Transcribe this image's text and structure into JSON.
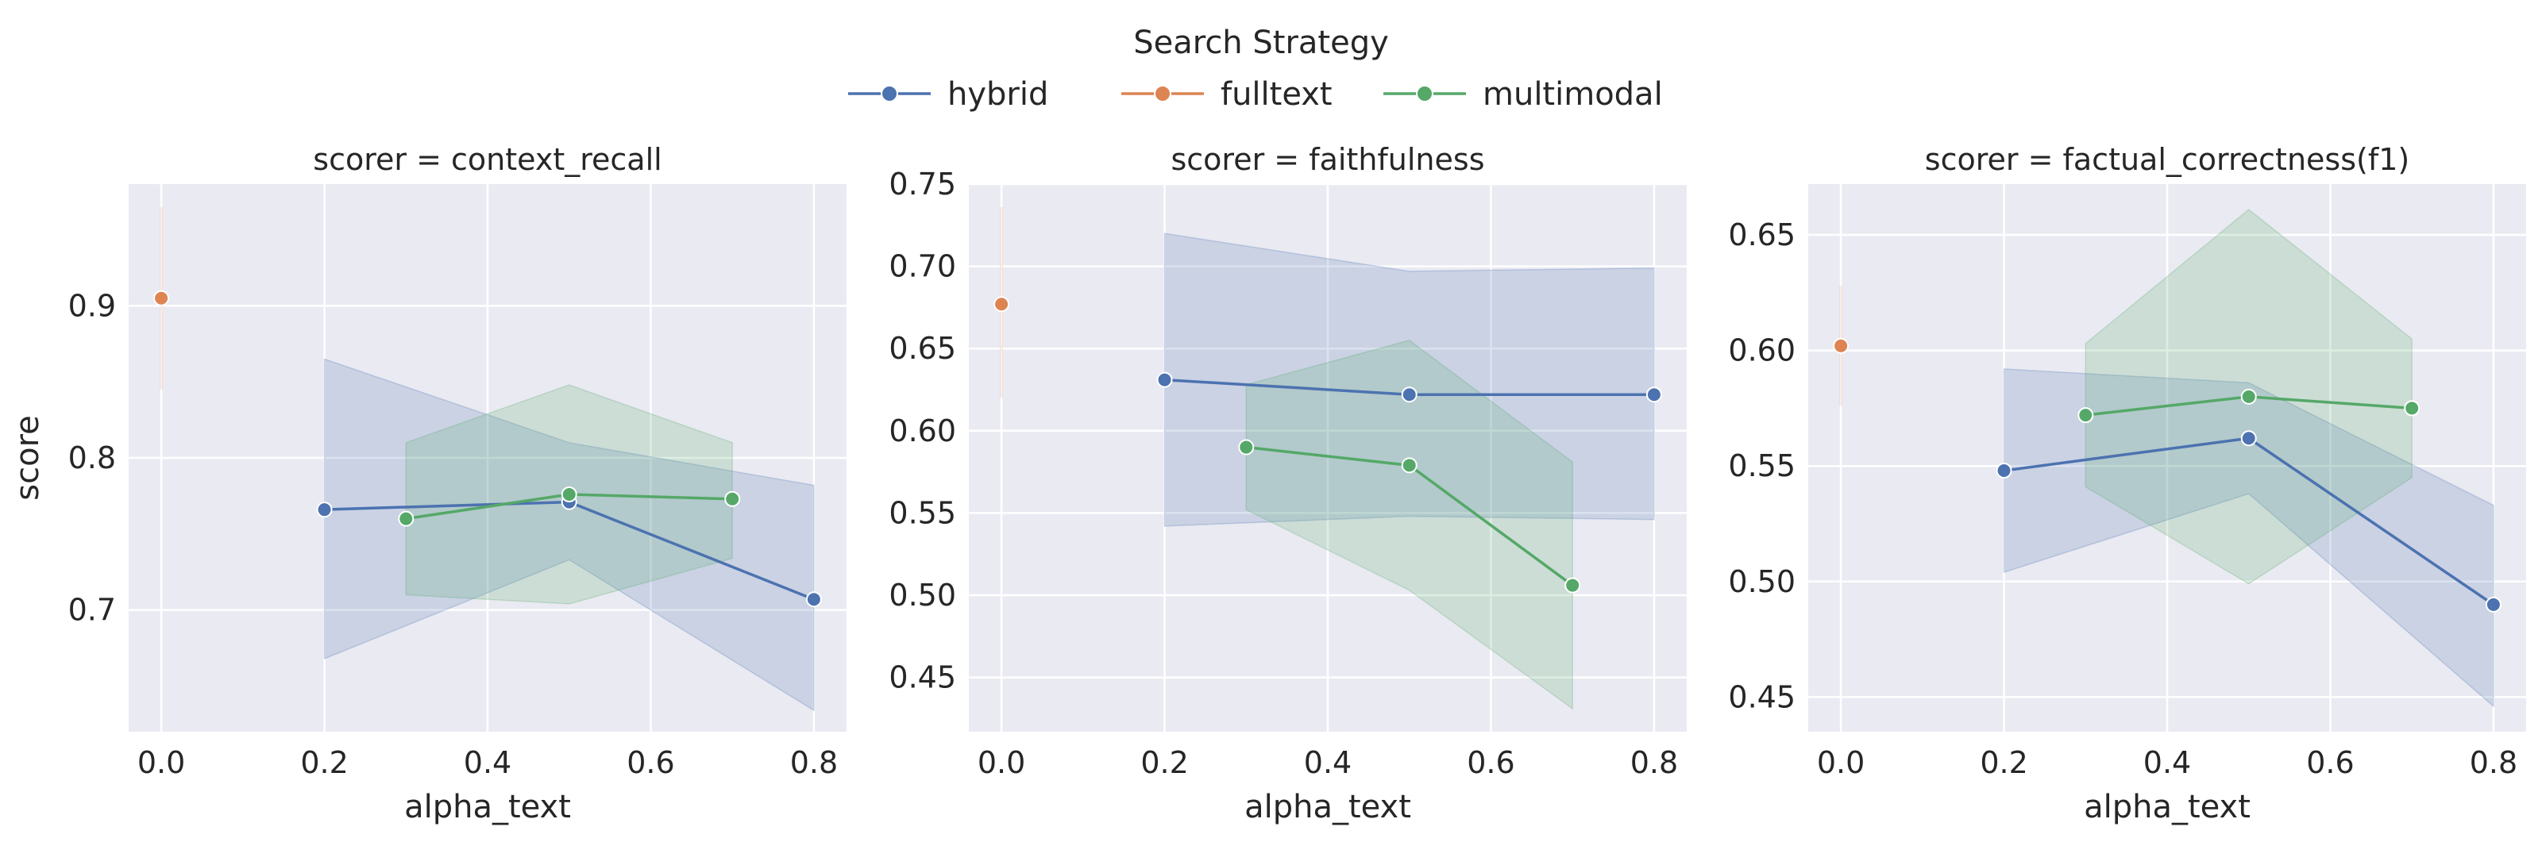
{
  "legend": {
    "title": "Search Strategy",
    "entries": [
      {
        "label": "hybrid",
        "color": "#4c72b0"
      },
      {
        "label": "fulltext",
        "color": "#dd8452"
      },
      {
        "label": "multimodal",
        "color": "#55a868"
      }
    ]
  },
  "chart_data": [
    {
      "type": "line",
      "title": "scorer = context_recall",
      "xlabel": "alpha_text",
      "ylabel": "score",
      "xlim": [
        -0.04,
        0.84
      ],
      "ylim": [
        0.62,
        0.98
      ],
      "xticks": [
        0.0,
        0.2,
        0.4,
        0.6,
        0.8
      ],
      "xtick_labels": [
        "0.0",
        "0.2",
        "0.4",
        "0.6",
        "0.8"
      ],
      "yticks": [
        0.7,
        0.8,
        0.9
      ],
      "ytick_labels": [
        "0.7",
        "0.8",
        "0.9"
      ],
      "grid": true,
      "series": [
        {
          "name": "hybrid",
          "color": "#4c72b0",
          "points": [
            {
              "x": 0.2,
              "y": 0.766
            },
            {
              "x": 0.5,
              "y": 0.771
            },
            {
              "x": 0.8,
              "y": 0.707
            }
          ],
          "ci_low": [
            0.668,
            0.733,
            0.634
          ],
          "ci_high": [
            0.865,
            0.81,
            0.782
          ]
        },
        {
          "name": "fulltext",
          "color": "#dd8452",
          "points": [
            {
              "x": 0.0,
              "y": 0.905
            }
          ],
          "ci_low": [
            0.845
          ],
          "ci_high": [
            0.965
          ]
        },
        {
          "name": "multimodal",
          "color": "#55a868",
          "points": [
            {
              "x": 0.3,
              "y": 0.76
            },
            {
              "x": 0.5,
              "y": 0.776
            },
            {
              "x": 0.7,
              "y": 0.773
            }
          ],
          "ci_low": [
            0.71,
            0.704,
            0.734
          ],
          "ci_high": [
            0.81,
            0.848,
            0.81
          ]
        }
      ]
    },
    {
      "type": "line",
      "title": "scorer = faithfulness",
      "xlabel": "alpha_text",
      "ylabel": "",
      "xlim": [
        -0.04,
        0.84
      ],
      "ylim": [
        0.417,
        0.75
      ],
      "xticks": [
        0.0,
        0.2,
        0.4,
        0.6,
        0.8
      ],
      "xtick_labels": [
        "0.0",
        "0.2",
        "0.4",
        "0.6",
        "0.8"
      ],
      "yticks": [
        0.45,
        0.5,
        0.55,
        0.6,
        0.65,
        0.7,
        0.75
      ],
      "ytick_labels": [
        "0.45",
        "0.50",
        "0.55",
        "0.60",
        "0.65",
        "0.70",
        "0.75"
      ],
      "grid": true,
      "series": [
        {
          "name": "hybrid",
          "color": "#4c72b0",
          "points": [
            {
              "x": 0.2,
              "y": 0.631
            },
            {
              "x": 0.5,
              "y": 0.622
            },
            {
              "x": 0.8,
              "y": 0.622
            }
          ],
          "ci_low": [
            0.542,
            0.548,
            0.546
          ],
          "ci_high": [
            0.72,
            0.697,
            0.699
          ]
        },
        {
          "name": "fulltext",
          "color": "#dd8452",
          "points": [
            {
              "x": 0.0,
              "y": 0.677
            }
          ],
          "ci_low": [
            0.62
          ],
          "ci_high": [
            0.736
          ]
        },
        {
          "name": "multimodal",
          "color": "#55a868",
          "points": [
            {
              "x": 0.3,
              "y": 0.59
            },
            {
              "x": 0.5,
              "y": 0.579
            },
            {
              "x": 0.7,
              "y": 0.506
            }
          ],
          "ci_low": [
            0.552,
            0.503,
            0.431
          ],
          "ci_high": [
            0.628,
            0.655,
            0.581
          ]
        }
      ]
    },
    {
      "type": "line",
      "title": "scorer = factual_correctness(f1)",
      "xlabel": "alpha_text",
      "ylabel": "",
      "xlim": [
        -0.04,
        0.84
      ],
      "ylim": [
        0.435,
        0.672
      ],
      "xticks": [
        0.0,
        0.2,
        0.4,
        0.6,
        0.8
      ],
      "xtick_labels": [
        "0.0",
        "0.2",
        "0.4",
        "0.6",
        "0.8"
      ],
      "yticks": [
        0.45,
        0.5,
        0.55,
        0.6,
        0.65
      ],
      "ytick_labels": [
        "0.45",
        "0.50",
        "0.55",
        "0.60",
        "0.65"
      ],
      "grid": true,
      "series": [
        {
          "name": "hybrid",
          "color": "#4c72b0",
          "points": [
            {
              "x": 0.2,
              "y": 0.548
            },
            {
              "x": 0.5,
              "y": 0.562
            },
            {
              "x": 0.8,
              "y": 0.49
            }
          ],
          "ci_low": [
            0.504,
            0.538,
            0.446
          ],
          "ci_high": [
            0.592,
            0.586,
            0.533
          ]
        },
        {
          "name": "fulltext",
          "color": "#dd8452",
          "points": [
            {
              "x": 0.0,
              "y": 0.602
            }
          ],
          "ci_low": [
            0.576
          ],
          "ci_high": [
            0.628
          ]
        },
        {
          "name": "multimodal",
          "color": "#55a868",
          "points": [
            {
              "x": 0.3,
              "y": 0.572
            },
            {
              "x": 0.5,
              "y": 0.58
            },
            {
              "x": 0.7,
              "y": 0.575
            }
          ],
          "ci_low": [
            0.541,
            0.499,
            0.545
          ],
          "ci_high": [
            0.603,
            0.661,
            0.605
          ]
        }
      ]
    }
  ]
}
